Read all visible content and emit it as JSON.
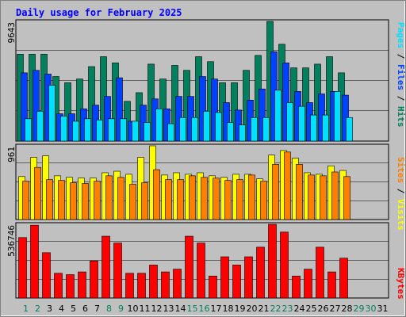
{
  "chart_data": [
    {
      "type": "bar",
      "title": "Daily usage for February 2025",
      "categories": [
        "1",
        "2",
        "3",
        "4",
        "5",
        "6",
        "7",
        "8",
        "9",
        "10",
        "11",
        "12",
        "13",
        "14",
        "15",
        "16",
        "17",
        "18",
        "19",
        "20",
        "21",
        "22",
        "23",
        "24",
        "25",
        "26",
        "27",
        "28",
        "29",
        "30",
        "31"
      ],
      "ymax_label": "9643",
      "ylim": [
        0,
        9643
      ],
      "legend": [
        "Pages",
        "Files",
        "Hits"
      ],
      "series": [
        {
          "name": "Hits",
          "color": "#00805c",
          "values": [
            7000,
            7000,
            7000,
            5200,
            4700,
            5000,
            6000,
            6800,
            6300,
            3200,
            3900,
            6200,
            5000,
            6100,
            5700,
            6800,
            6400,
            4700,
            4700,
            5700,
            6900,
            9643,
            7800,
            5900,
            5900,
            6200,
            6800,
            5500,
            0,
            0,
            0
          ]
        },
        {
          "name": "Files",
          "color": "#0040ff",
          "values": [
            5500,
            5700,
            5400,
            2200,
            2200,
            2600,
            2900,
            3600,
            5100,
            1600,
            2900,
            3400,
            2600,
            3600,
            3600,
            5200,
            5000,
            3100,
            2500,
            3300,
            4200,
            7200,
            6300,
            4000,
            3100,
            3800,
            4000,
            3700,
            0,
            0,
            0
          ]
        },
        {
          "name": "Pages",
          "color": "#00e0ff",
          "values": [
            1800,
            2400,
            4500,
            2000,
            1600,
            1800,
            1700,
            1800,
            1800,
            1600,
            1500,
            2600,
            1400,
            1900,
            1900,
            2400,
            2300,
            1500,
            1300,
            1900,
            1900,
            4100,
            3100,
            2800,
            2100,
            2100,
            4000,
            1900,
            0,
            0,
            0
          ]
        }
      ]
    },
    {
      "type": "bar",
      "categories": [
        "1",
        "2",
        "3",
        "4",
        "5",
        "6",
        "7",
        "8",
        "9",
        "10",
        "11",
        "12",
        "13",
        "14",
        "15",
        "16",
        "17",
        "18",
        "19",
        "20",
        "21",
        "22",
        "23",
        "24",
        "25",
        "26",
        "27",
        "28",
        "29",
        "30",
        "31"
      ],
      "ymax_label": "961",
      "ylim": [
        0,
        961
      ],
      "legend": [
        "Sites",
        "Visits"
      ],
      "series": [
        {
          "name": "Visits",
          "color": "#ffff00",
          "values": [
            560,
            810,
            830,
            570,
            550,
            540,
            540,
            610,
            630,
            590,
            810,
            961,
            580,
            610,
            590,
            610,
            570,
            550,
            590,
            590,
            530,
            840,
            900,
            800,
            610,
            590,
            700,
            640,
            0,
            0,
            0
          ]
        },
        {
          "name": "Sites",
          "color": "#ff8000",
          "values": [
            500,
            680,
            520,
            510,
            480,
            470,
            500,
            570,
            550,
            460,
            480,
            650,
            520,
            520,
            570,
            550,
            540,
            510,
            520,
            580,
            500,
            720,
            880,
            720,
            580,
            570,
            620,
            560,
            0,
            0,
            0
          ]
        }
      ]
    },
    {
      "type": "bar",
      "categories": [
        "1",
        "2",
        "3",
        "4",
        "5",
        "6",
        "7",
        "8",
        "9",
        "10",
        "11",
        "12",
        "13",
        "14",
        "15",
        "16",
        "17",
        "18",
        "19",
        "20",
        "21",
        "22",
        "23",
        "24",
        "25",
        "26",
        "27",
        "28",
        "29",
        "30",
        "31"
      ],
      "ymax_label": "536746",
      "ylim": [
        0,
        536746
      ],
      "legend": [
        "KBytes"
      ],
      "series": [
        {
          "name": "KBytes",
          "color": "#ff0000",
          "values": [
            440000,
            530000,
            330000,
            180000,
            170000,
            190000,
            270000,
            450000,
            400000,
            180000,
            180000,
            240000,
            190000,
            210000,
            450000,
            400000,
            160000,
            300000,
            240000,
            300000,
            370000,
            536746,
            480000,
            160000,
            210000,
            370000,
            190000,
            290000,
            0,
            0,
            0
          ]
        }
      ]
    }
  ],
  "colors": {
    "background": "#c0c0c0",
    "border": "#000000",
    "title": "#0000ff",
    "weekday_label": "#000000",
    "weekend_label": "#00805c"
  },
  "weekend_days": [
    "1",
    "2",
    "8",
    "9",
    "15",
    "16",
    "22",
    "23",
    "29",
    "30"
  ]
}
